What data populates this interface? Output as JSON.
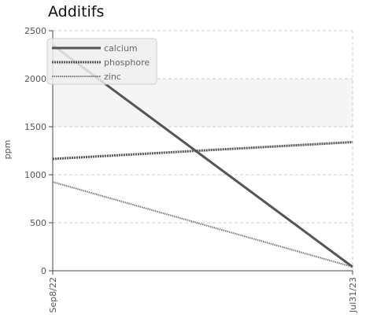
{
  "chart_data": {
    "type": "line",
    "title": "Additifs",
    "ylabel": "ppm",
    "xlabel": "",
    "ylim": [
      0,
      2500
    ],
    "yticks": [
      0,
      500,
      1000,
      1500,
      2000,
      2500
    ],
    "categories": [
      "Sep8/22",
      "Jul31/23"
    ],
    "grid": true,
    "legend": "top-left",
    "series": [
      {
        "name": "calcium",
        "values": [
          2350,
          40
        ],
        "color": "#555555",
        "style": "solid"
      },
      {
        "name": "phosphore",
        "values": [
          1165,
          1340
        ],
        "color": "#555555",
        "style": "dotted"
      },
      {
        "name": "zinc",
        "values": [
          925,
          40
        ],
        "color": "#777777",
        "style": "dotted"
      }
    ]
  }
}
